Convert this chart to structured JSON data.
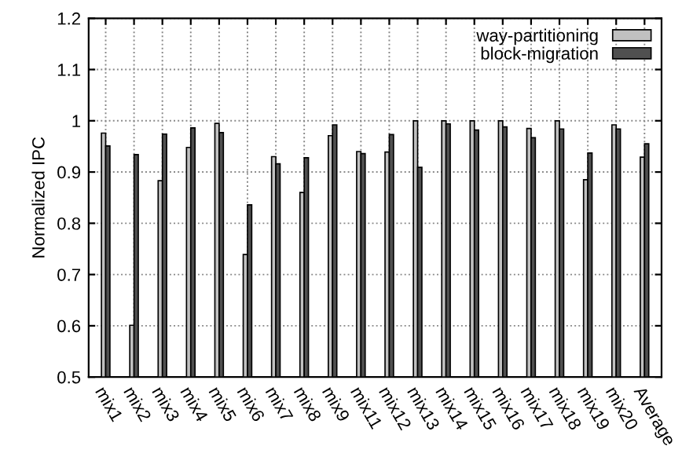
{
  "chart_data": {
    "type": "bar",
    "ylabel": "Normalized IPC",
    "categories": [
      "mix1",
      "mix2",
      "mix3",
      "mix4",
      "mix5",
      "mix6",
      "mix7",
      "mix8",
      "mix9",
      "mix11",
      "mix12",
      "mix13",
      "mix14",
      "mix15",
      "mix16",
      "mix17",
      "mix18",
      "mix19",
      "mix20",
      "Average"
    ],
    "series": [
      {
        "name": "way-partitioning",
        "color": "#c0c0c0",
        "values": [
          0.976,
          0.601,
          0.883,
          0.948,
          0.995,
          0.739,
          0.93,
          0.86,
          0.971,
          0.94,
          0.939,
          1.0,
          1.0,
          1.0,
          1.0,
          0.985,
          1.0,
          0.885,
          0.992,
          0.929
        ]
      },
      {
        "name": "block-migration",
        "color": "#505050",
        "values": [
          0.951,
          0.934,
          0.974,
          0.986,
          0.977,
          0.836,
          0.916,
          0.928,
          0.992,
          0.936,
          0.973,
          0.909,
          0.994,
          0.982,
          0.988,
          0.967,
          0.984,
          0.937,
          0.984,
          0.955
        ]
      }
    ],
    "ylim": [
      0.5,
      1.2
    ],
    "yticks": [
      0.5,
      0.6,
      0.7,
      0.8,
      0.9,
      1,
      1.1,
      1.2
    ],
    "grid": true,
    "legend": "top right"
  }
}
